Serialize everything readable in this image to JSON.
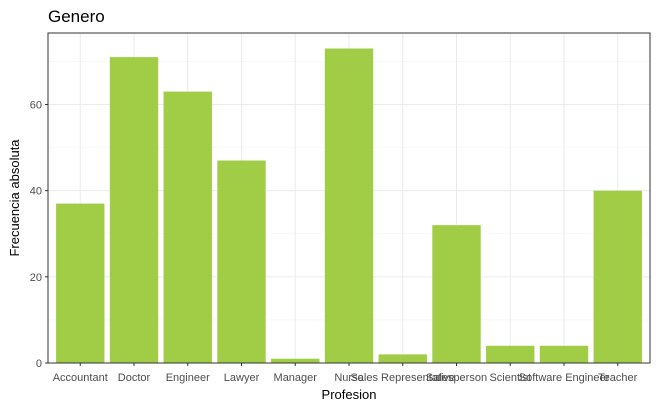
{
  "chart_data": {
    "type": "bar",
    "title": "Genero",
    "xlabel": "Profesion",
    "ylabel": "Frecuencia absoluta",
    "categories": [
      "Accountant",
      "Doctor",
      "Engineer",
      "Lawyer",
      "Manager",
      "Nurse",
      "Sales Representative",
      "Salesperson",
      "Scientist",
      "Software Engineer",
      "Teacher"
    ],
    "values": [
      37,
      71,
      63,
      47,
      1,
      73,
      2,
      32,
      4,
      4,
      40
    ],
    "yticks": [
      0,
      20,
      40,
      60
    ],
    "ylim": [
      0,
      76.6
    ],
    "grid": true,
    "bar_color": "#a0cd45"
  }
}
